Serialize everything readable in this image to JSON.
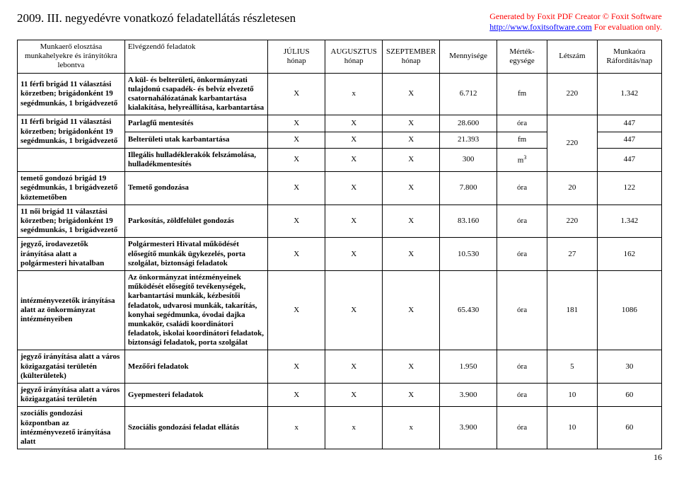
{
  "header": {
    "title": "2009. III. negyedévre vonatkozó feladatellátás részletesen",
    "generated_line1": "Generated by Foxit PDF Creator © Foxit Software",
    "generated_url": "http://www.foxitsoftware.com",
    "generated_line2_suffix": "   For evaluation only."
  },
  "cols": {
    "org": "Munkaerő elosztása munkahelyekre és irányítókra lebontva",
    "task_top": "Elvégzendő feladatok",
    "jul": "JÚLIUS",
    "aug": "AUGUSZTUS",
    "sep": "SZEPTEMBER",
    "honap": "hónap",
    "qty": "Mennyisége",
    "unit": "Mérték-egysége",
    "count": "Létszám",
    "hours_top": "Munkaóra",
    "hours_bot": "Ráfordítás/nap"
  },
  "rows": [
    {
      "org": "11 férfi brigád 11 választási körzetben; brigádonként 19 segédmunkás, 1 brigádvezető",
      "org_rowspan": 1,
      "task": "A kül- és belterületi, önkormányzati tulajdonú csapadék- és belvíz elvezető csatornahálózatának karbantartása kialakítása, helyreállítása, karbantartása",
      "jul": "X",
      "aug": "x",
      "sep": "X",
      "qty": "6.712",
      "unit": "fm",
      "count": "220",
      "hours": "1.342",
      "count_rowspan": 1,
      "hours_rowspan": 1
    },
    {
      "org": "11 férfi brigád 11 választási körzetben; brigádonként 19 segédmunkás, 1 brigádvezető",
      "org_rowspan": 2,
      "task": "Parlagfű mentesítés",
      "jul": "X",
      "aug": "X",
      "sep": "X",
      "qty": "28.600",
      "unit": "óra",
      "count": "220",
      "hours": "447",
      "count_rowspan": 3,
      "hours_rowspan": 1
    },
    {
      "task": "Belterületi utak karbantartása",
      "jul": "X",
      "aug": "X",
      "sep": "X",
      "qty": "21.393",
      "unit": "fm",
      "hours": "447",
      "hours_rowspan": 1
    },
    {
      "org": "",
      "org_empty": true,
      "task": "Illegális hulladéklerakók felszámolása, hulladékmentesítés",
      "jul": "X",
      "aug": "X",
      "sep": "X",
      "qty": "300",
      "unit_html": "m³",
      "hours": "447"
    },
    {
      "org": "temető gondozó brigád 19 segédmunkás, 1 brigádvezető köztemetőben",
      "task": "Temető gondozása",
      "jul": "X",
      "aug": "X",
      "sep": "X",
      "qty": "7.800",
      "unit": "óra",
      "count": "20",
      "hours": "122"
    },
    {
      "org": "11 női brigád 11 választási körzetben; brigádonként 19 segédmunkás, 1 brigádvezető",
      "task": "Parkosítás, zöldfelület gondozás",
      "jul": "X",
      "aug": "X",
      "sep": "X",
      "qty": "83.160",
      "unit": "óra",
      "count": "220",
      "hours": "1.342"
    },
    {
      "org": "jegyző, irodavezetők irányítása alatt a polgármesteri hivatalban",
      "task": "Polgármesteri Hivatal működését elősegítő munkák ügykezelés, porta szolgálat, biztonsági feladatok",
      "jul": "X",
      "aug": "X",
      "sep": "X",
      "qty": "10.530",
      "unit": "óra",
      "count": "27",
      "hours": "162"
    },
    {
      "org": "intézményvezetők irányítása alatt az önkormányzat intézményeiben",
      "task": "Az önkormányzat intézményeinek működését elősegítő tevékenységek, karbantartási munkák, kézbesítői feladatok, udvarosi munkák, takarítás, konyhai segédmunka, óvodai dajka munkakör, családi koordinátori feladatok, iskolai koordinátori feladatok, biztonsági feladatok, porta szolgálat",
      "jul": "X",
      "aug": "X",
      "sep": "X",
      "qty": "65.430",
      "unit": "óra",
      "count": "181",
      "hours": "1086"
    },
    {
      "org": "jegyző irányítása alatt a város közigazgatási területén (külterületek)",
      "task": "Mezőőri feladatok",
      "jul": "X",
      "aug": "X",
      "sep": "X",
      "qty": "1.950",
      "unit": "óra",
      "count": "5",
      "hours": "30"
    },
    {
      "org": "jegyző irányítása alatt a város közigazgatási területén",
      "task": "Gyepmesteri feladatok",
      "jul": "X",
      "aug": "X",
      "sep": "X",
      "qty": "3.900",
      "unit": "óra",
      "count": "10",
      "hours": "60"
    },
    {
      "org": "szociális gondozási központban az intézményvezető irányítása alatt",
      "task": "Szociális gondozási feladat ellátás",
      "jul": "x",
      "aug": "x",
      "sep": "x",
      "qty": "3.900",
      "unit": "óra",
      "count": "10",
      "hours": "60"
    }
  ],
  "pagenum": "16"
}
